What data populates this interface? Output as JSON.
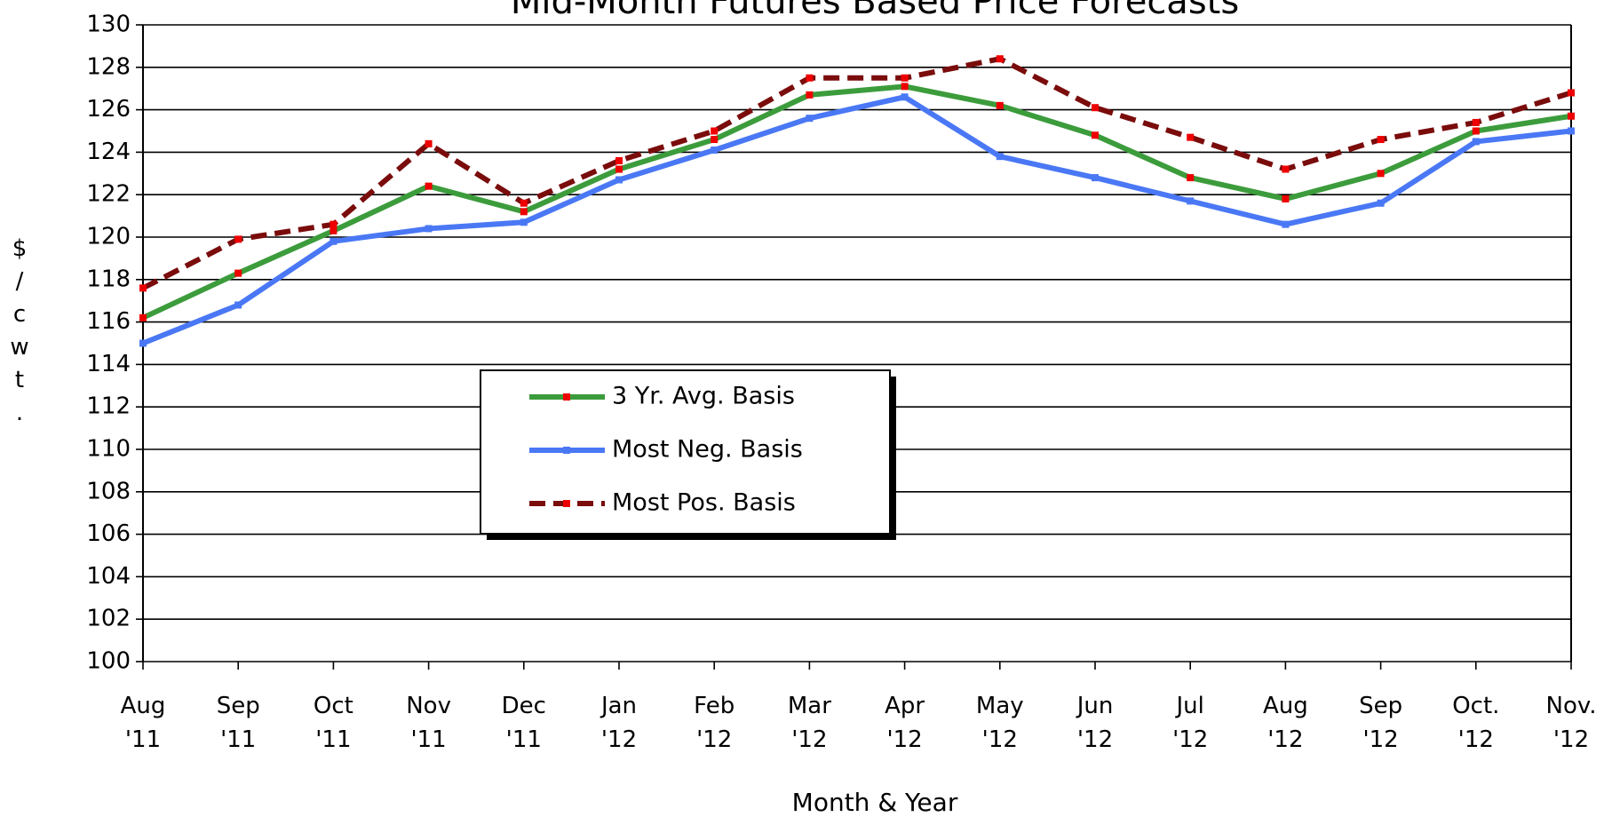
{
  "chart_data": {
    "type": "line",
    "title": "Mid-Month Futures Based Price Forecasts",
    "x_label": "Month & Year",
    "y_label": "$/cwt.",
    "categories": [
      "Aug '11",
      "Sep '11",
      "Oct '11",
      "Nov '11",
      "Dec '11",
      "Jan '12",
      "Feb '12",
      "Mar '12",
      "Apr '12",
      "May '12",
      "Jun '12",
      "Jul '12",
      "Aug '12",
      "Sep '12",
      "Oct. '12",
      "Nov. '12"
    ],
    "series": [
      {
        "name": "3 Yr. Avg. Basis",
        "color": "#3c9c3c",
        "values": [
          116.2,
          118.3,
          120.3,
          122.4,
          121.2,
          123.2,
          124.6,
          126.7,
          127.1,
          126.2,
          124.8,
          122.8,
          121.8,
          123.0,
          125.0,
          125.7
        ]
      },
      {
        "name": "Most Neg. Basis",
        "color": "#4a78f5",
        "values": [
          115.0,
          116.8,
          119.8,
          120.4,
          120.7,
          122.7,
          124.1,
          125.6,
          126.6,
          123.8,
          122.8,
          121.7,
          120.6,
          121.6,
          124.5,
          125.0
        ]
      },
      {
        "name": "Most Pos. Basis",
        "color": "#7a0c0c",
        "values": [
          117.6,
          119.9,
          120.6,
          124.4,
          121.6,
          123.6,
          125.0,
          127.5,
          127.5,
          128.4,
          126.1,
          124.7,
          123.2,
          124.6,
          125.4,
          126.8
        ]
      }
    ],
    "ylim": [
      100,
      130
    ],
    "yticks": [
      100,
      102,
      104,
      106,
      108,
      110,
      112,
      114,
      116,
      118,
      120,
      122,
      124,
      126,
      128,
      130
    ],
    "grid": true
  }
}
